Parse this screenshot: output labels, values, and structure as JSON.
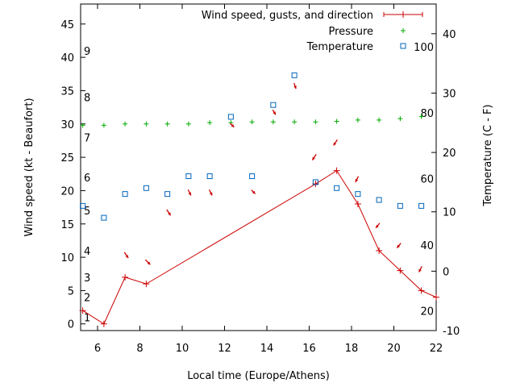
{
  "chart_data": {
    "type": "line",
    "xlabel": "Local time (Europe/Athens)",
    "ylabel": "Wind speed (kt - Beaufort)",
    "y2label": "Temperature (C - F)",
    "xlim": [
      5.2,
      22
    ],
    "ylim": [
      -1,
      48
    ],
    "y2lim": [
      -10,
      45
    ],
    "x_ticks": [
      6,
      8,
      10,
      12,
      14,
      16,
      18,
      20,
      22
    ],
    "y_ticks": [
      0,
      5,
      10,
      15,
      20,
      25,
      30,
      35,
      40,
      45
    ],
    "y2_ticks": [
      -10,
      0,
      10,
      20,
      30,
      40
    ],
    "beaufort_labels": [
      {
        "text": "1",
        "y": 1
      },
      {
        "text": "2",
        "y": 4
      },
      {
        "text": "3",
        "y": 7
      },
      {
        "text": "4",
        "y": 11
      },
      {
        "text": "5",
        "y": 17
      },
      {
        "text": "6",
        "y": 22
      },
      {
        "text": "7",
        "y": 28
      },
      {
        "text": "8",
        "y": 34
      },
      {
        "text": "9",
        "y": 41
      }
    ],
    "fahrenheit_labels": [
      {
        "text": "20",
        "y2": -6.7
      },
      {
        "text": "40",
        "y2": 4.4
      },
      {
        "text": "60",
        "y2": 15.6
      },
      {
        "text": "80",
        "y2": 26.7
      },
      {
        "text": "100",
        "y2": 37.8
      }
    ],
    "series": [
      {
        "name": "Wind speed, gusts, and direction",
        "color": "#cc0000",
        "x": [
          5.3,
          6.3,
          7.3,
          8.3,
          16.3,
          17.3,
          18.3,
          19.3,
          20.3,
          21.3,
          22
        ],
        "y": [
          2,
          0,
          7,
          6,
          21,
          23,
          18,
          11,
          8,
          5,
          4
        ]
      },
      {
        "name": "Pressure",
        "color": "#00aa00",
        "x": [
          5.3,
          6.3,
          7.3,
          8.3,
          9.3,
          10.3,
          11.3,
          12.3,
          13.3,
          14.3,
          15.3,
          16.3,
          17.3,
          18.3,
          19.3,
          20.3,
          21.3
        ],
        "y": [
          29.8,
          29.8,
          30,
          30,
          30,
          30,
          30.2,
          30.2,
          30.3,
          30.3,
          30.3,
          30.3,
          30.4,
          30.6,
          30.6,
          30.8,
          31.1
        ]
      },
      {
        "name": "Temperature",
        "color": "#0066bb",
        "axis": "y2",
        "x": [
          5.3,
          6.3,
          7.3,
          8.3,
          9.3,
          10.3,
          11.3,
          12.3,
          13.3,
          14.3,
          15.3,
          16.3,
          17.3,
          18.3,
          19.3,
          20.3,
          21.3
        ],
        "y": [
          11,
          9,
          13,
          14,
          13,
          16,
          16,
          26,
          16,
          28,
          33,
          15,
          14,
          13,
          12,
          11,
          11
        ]
      }
    ],
    "wind_direction_arrows": [
      {
        "x": 7.3,
        "y": 10.6,
        "dx": 4,
        "dy": 6
      },
      {
        "x": 8.3,
        "y": 9.5,
        "dx": 5,
        "dy": 5
      },
      {
        "x": 9.3,
        "y": 17,
        "dx": 4,
        "dy": 6
      },
      {
        "x": 10.3,
        "y": 20,
        "dx": 3,
        "dy": 6
      },
      {
        "x": 11.3,
        "y": 20,
        "dx": 3,
        "dy": 6
      },
      {
        "x": 12.3,
        "y": 30,
        "dx": 4,
        "dy": 4
      },
      {
        "x": 13.3,
        "y": 20,
        "dx": 4,
        "dy": 4
      },
      {
        "x": 14.3,
        "y": 32,
        "dx": 3,
        "dy": 5
      },
      {
        "x": 15.3,
        "y": 36,
        "dx": 2,
        "dy": 6
      },
      {
        "x": 16.3,
        "y": 25.3,
        "dx": -4,
        "dy": 6
      },
      {
        "x": 17.3,
        "y": 27.5,
        "dx": -4,
        "dy": 6
      },
      {
        "x": 18.3,
        "y": 22,
        "dx": -3,
        "dy": 6
      },
      {
        "x": 19.3,
        "y": 15,
        "dx": -4,
        "dy": 5
      },
      {
        "x": 20.3,
        "y": 12,
        "dx": -4,
        "dy": 5
      },
      {
        "x": 21.3,
        "y": 8.5,
        "dx": -3,
        "dy": 6
      }
    ],
    "legend": {
      "placement": "top-right"
    }
  }
}
